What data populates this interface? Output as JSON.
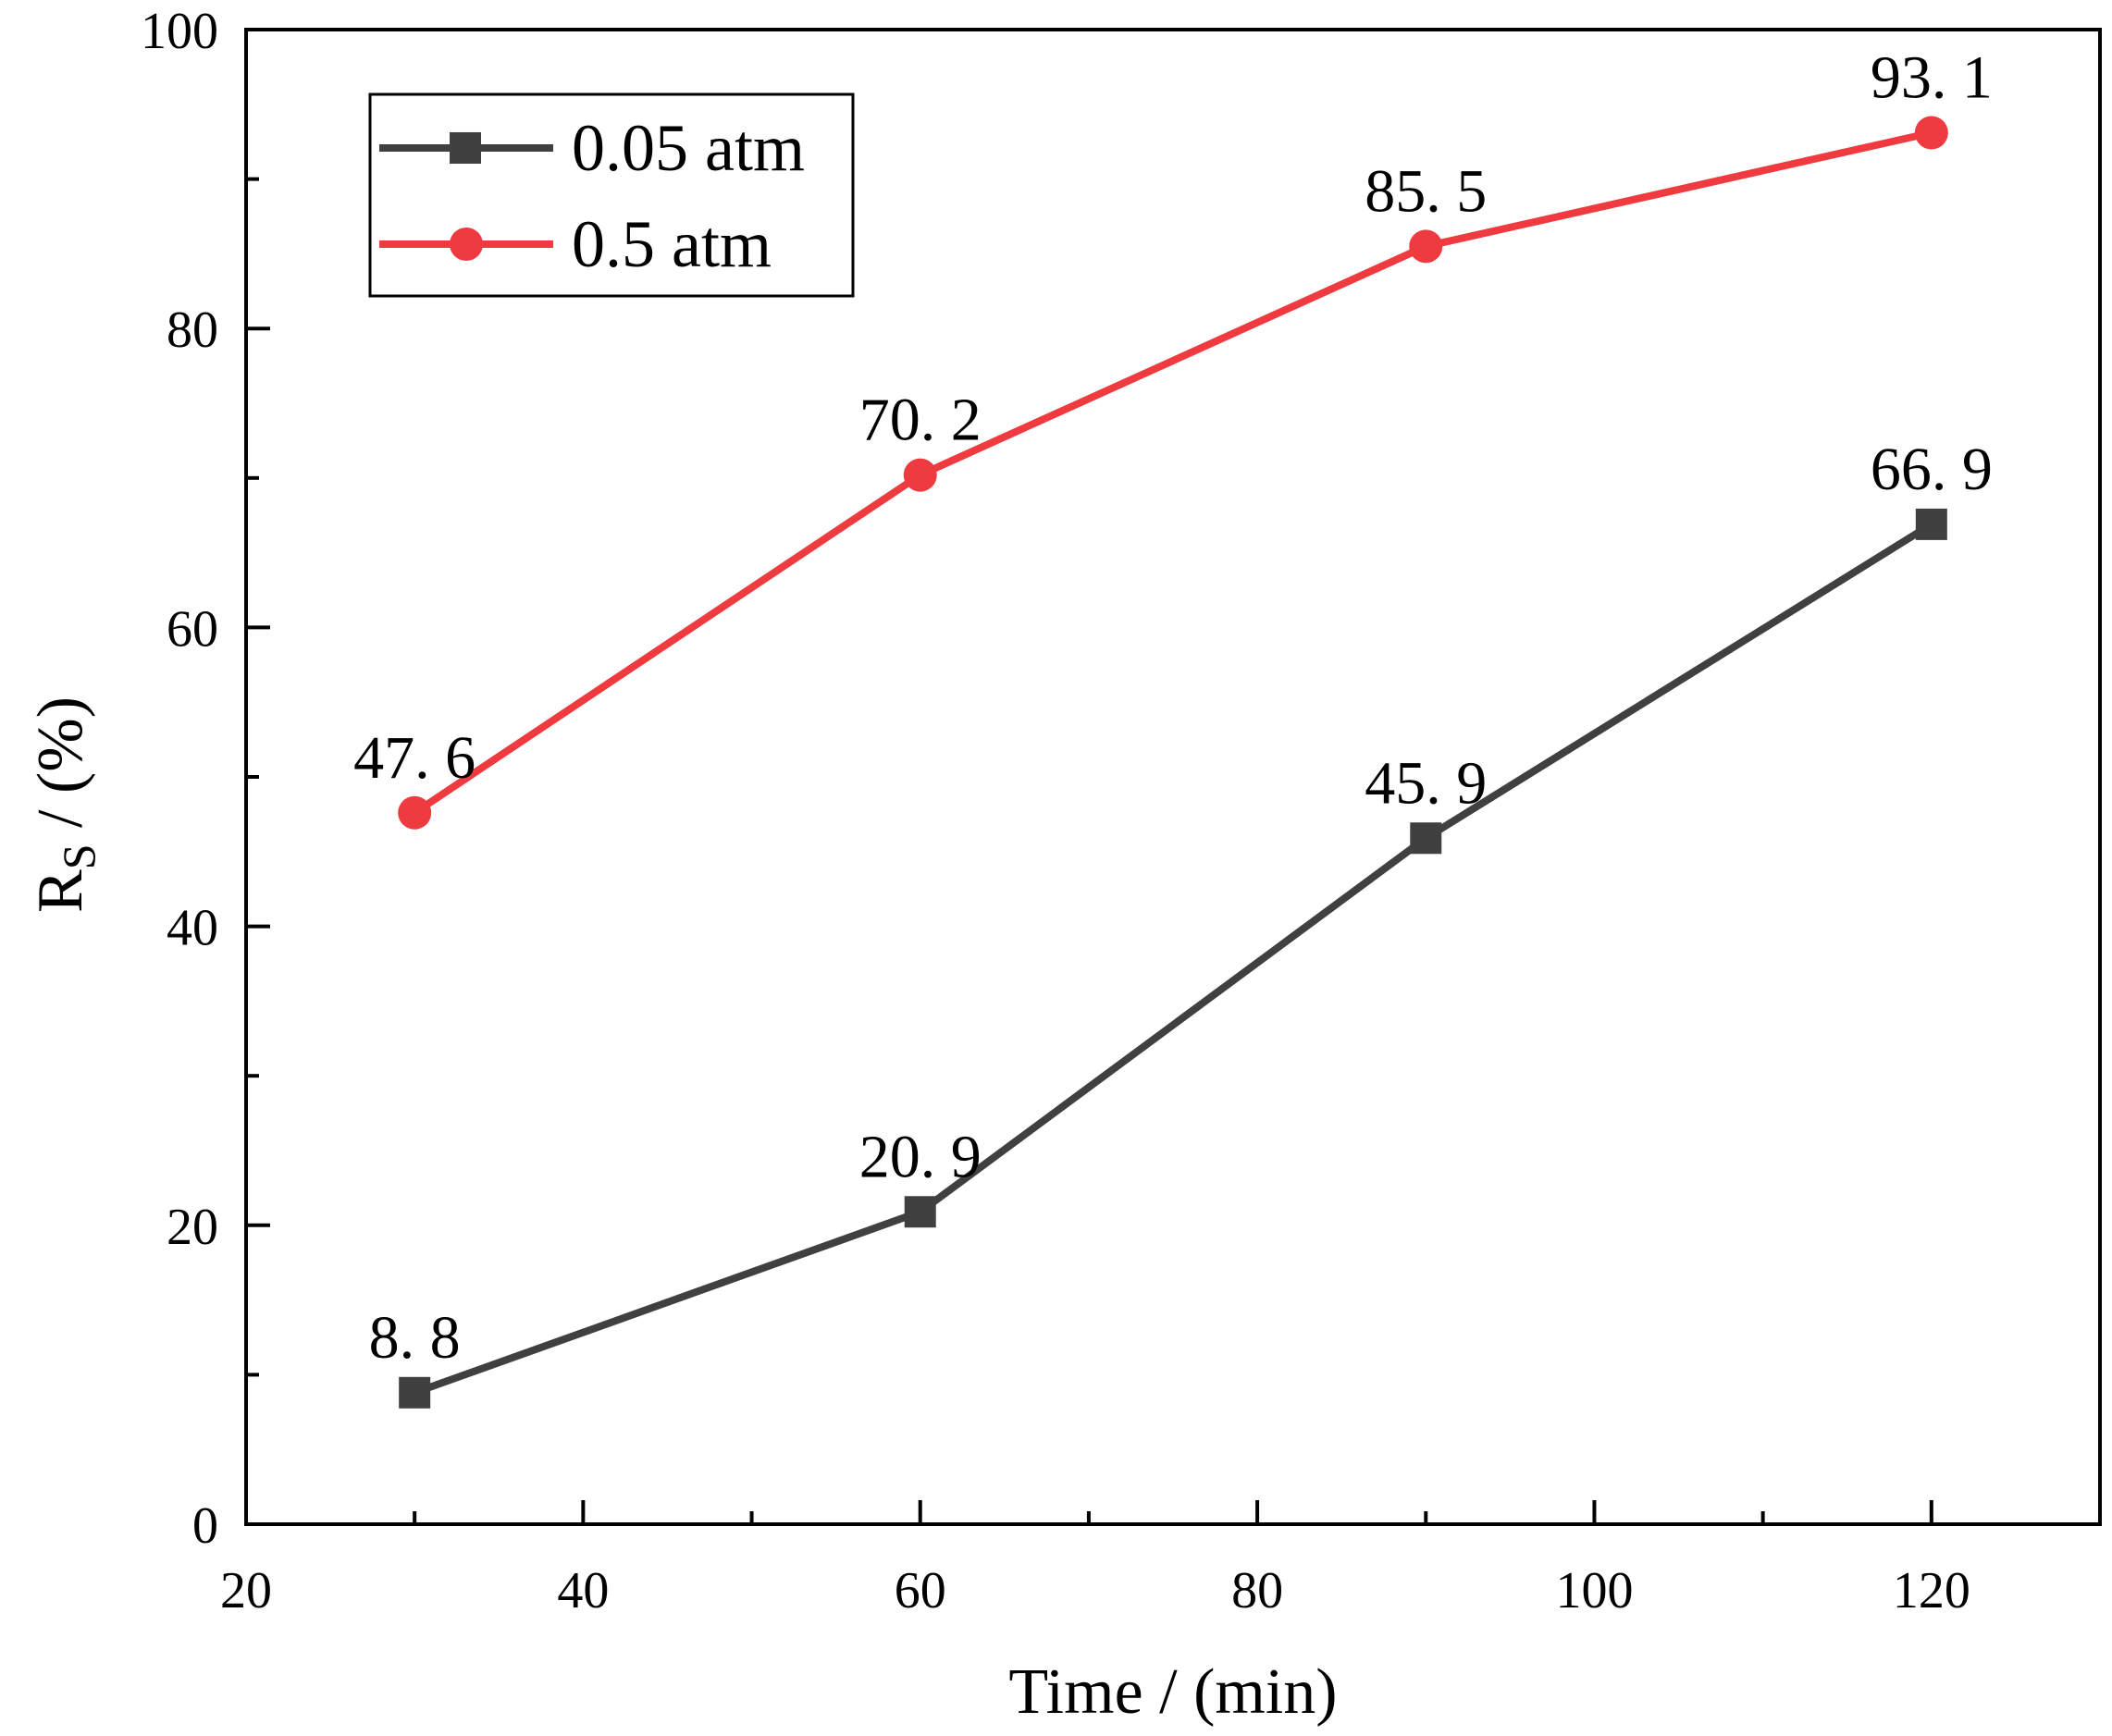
{
  "chart_data": {
    "type": "line",
    "title": "",
    "xlabel": "Time / (min)",
    "ylabel_main": "R",
    "ylabel_sub": "S",
    "ylabel_rest": " / (%)",
    "xlim": [
      20,
      130
    ],
    "ylim": [
      0,
      100
    ],
    "x_major_ticks": [
      20,
      40,
      60,
      80,
      100,
      120
    ],
    "x_minor_ticks": [
      30,
      50,
      70,
      90,
      110
    ],
    "x_tick_labels": [
      "20",
      "40",
      "60",
      "80",
      "100",
      "120"
    ],
    "y_major_ticks": [
      0,
      20,
      40,
      60,
      80,
      100
    ],
    "y_minor_ticks": [
      10,
      30,
      50,
      70,
      90
    ],
    "y_tick_labels": [
      "0",
      "20",
      "40",
      "60",
      "80",
      "100"
    ],
    "grid": false,
    "legend_position": "top-left",
    "x": [
      30,
      60,
      90,
      120
    ],
    "series": [
      {
        "name": "0.05 atm",
        "color": "#404040",
        "marker": "square",
        "values": [
          8.8,
          20.9,
          45.9,
          66.9
        ],
        "labels": [
          "8. 8",
          "20. 9",
          "45. 9",
          "66. 9"
        ]
      },
      {
        "name": "0.5 atm",
        "color": "#ef3b3f",
        "marker": "circle",
        "values": [
          47.6,
          70.2,
          85.5,
          93.1
        ],
        "labels": [
          "47. 6",
          "70. 2",
          "85. 5",
          "93. 1"
        ]
      }
    ]
  }
}
